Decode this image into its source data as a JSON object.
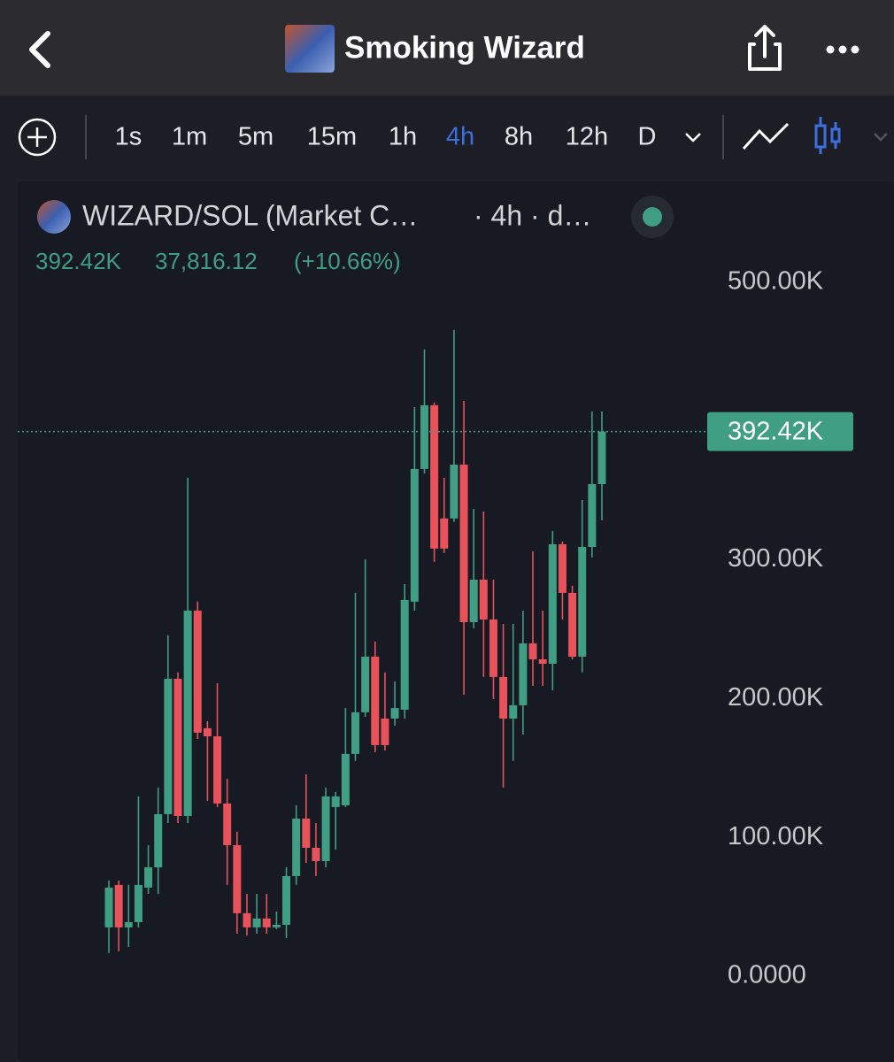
{
  "header": {
    "title": "Smoking Wizard"
  },
  "toolbar": {
    "timeframes": [
      "1s",
      "1m",
      "5m",
      "15m",
      "1h",
      "4h",
      "8h",
      "12h",
      "D"
    ],
    "selected_timeframe": "4h"
  },
  "legend": {
    "pair": "WIZARD/SOL (Market C…",
    "interval": "· 4h · d…",
    "change": "37,816.12",
    "change_pct": "(+10.66%)"
  },
  "chart_data": {
    "type": "candlestick",
    "up_color": "#3f9e84",
    "down_color": "#e8525a",
    "open": [
      35100,
      65700,
      35100,
      38900,
      63800,
      78400,
      116700,
      214300,
      115400,
      263400,
      178600,
      172800,
      124400,
      94400,
      45300,
      35100,
      41500,
      35100,
      37000,
      72100,
      113500,
      92500,
      82900,
      121800,
      123100,
      160100,
      190100,
      230200,
      185600,
      185600,
      192000,
      269800,
      365500,
      411400,
      329800,
      329800,
      368600,
      255100,
      285700,
      257000,
      215600,
      185600,
      195200,
      239800,
      228300,
      225100,
      311200,
      276200,
      230200,
      309300,
      354600
    ],
    "high": [
      68900,
      68900,
      65700,
      129500,
      94400,
      135900,
      245600,
      218800,
      359100,
      269800,
      183700,
      211100,
      142200,
      104000,
      59300,
      59300,
      59300,
      46600,
      78400,
      123100,
      145400,
      110300,
      135900,
      132700,
      193200,
      276200,
      300400,
      241100,
      218800,
      212400,
      282500,
      410100,
      451600,
      413300,
      359100,
      465600,
      414500,
      336700,
      334800,
      285700,
      253800,
      253800,
      263400,
      306100,
      263400,
      320800,
      313200,
      281300,
      343100,
      406900,
      406900
    ],
    "low": [
      16600,
      17900,
      21000,
      35100,
      59300,
      59300,
      110300,
      110300,
      110300,
      170900,
      126300,
      121800,
      65700,
      30600,
      29300,
      30600,
      30600,
      33800,
      27400,
      65700,
      81600,
      72100,
      78400,
      91200,
      121800,
      155000,
      186900,
      161400,
      162600,
      180500,
      185600,
      263400,
      362300,
      298500,
      304900,
      327200,
      202800,
      250700,
      215600,
      199600,
      135900,
      155000,
      174100,
      209200,
      209200,
      206000,
      257000,
      228300,
      218800,
      301700,
      328500
    ],
    "close": [
      63800,
      35100,
      38900,
      65700,
      78400,
      116700,
      214300,
      115400,
      263400,
      175400,
      172800,
      124400,
      94400,
      45300,
      35100,
      41500,
      35100,
      37000,
      72100,
      113500,
      92500,
      82900,
      129500,
      129500,
      160100,
      190100,
      230200,
      166500,
      166500,
      193200,
      271100,
      365500,
      411400,
      308100,
      308100,
      368600,
      255100,
      285700,
      257000,
      215600,
      185600,
      195200,
      239800,
      228300,
      225100,
      311200,
      276200,
      230200,
      309300,
      354600,
      392420
    ],
    "last_price": {
      "value": 392420,
      "label": "392.42K"
    },
    "ylim": [
      -61900,
      572700
    ],
    "yticks": [
      {
        "value": 0,
        "label": "0.0000"
      },
      {
        "value": 100000,
        "label": "100.00K"
      },
      {
        "value": 200000,
        "label": "200.00K"
      },
      {
        "value": 300000,
        "label": "300.00K"
      },
      {
        "value": 500000,
        "label": "500.00K"
      }
    ],
    "grid": false
  }
}
